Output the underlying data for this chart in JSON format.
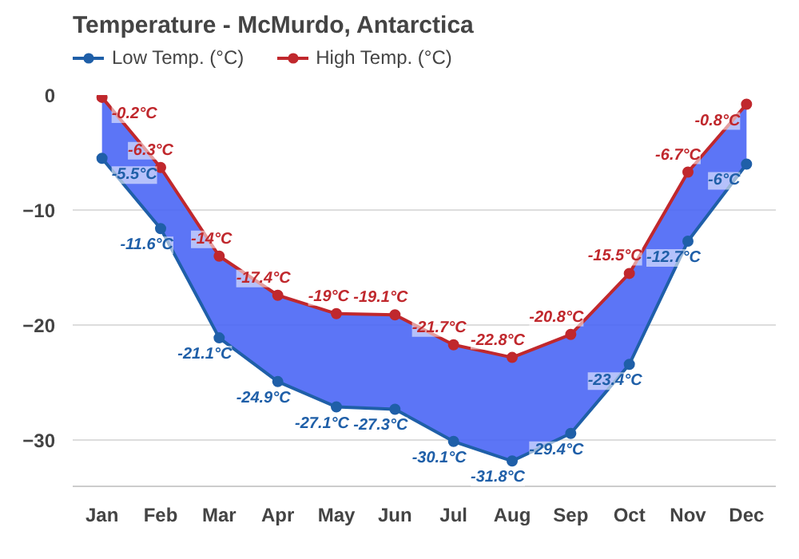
{
  "chart_data": {
    "type": "line",
    "title": "Temperature - McMurdo, Antarctica",
    "categories": [
      "Jan",
      "Feb",
      "Mar",
      "Apr",
      "May",
      "Jun",
      "Jul",
      "Aug",
      "Sep",
      "Oct",
      "Nov",
      "Dec"
    ],
    "series": [
      {
        "name": "Low Temp. (°C)",
        "color": "#1f5fa8",
        "values": [
          -5.5,
          -11.6,
          -21.1,
          -24.9,
          -27.1,
          -27.3,
          -30.1,
          -31.8,
          -29.4,
          -23.4,
          -12.7,
          -6.0
        ],
        "value_labels": [
          "-5.5°C",
          "-11.6°C",
          "-21.1°C",
          "-24.9°C",
          "-27.1°C",
          "-27.3°C",
          "-30.1°C",
          "-31.8°C",
          "-29.4°C",
          "-23.4°C",
          "-12.7°C",
          "-6°C"
        ]
      },
      {
        "name": "High Temp. (°C)",
        "color": "#c0282d",
        "values": [
          -0.2,
          -6.3,
          -14,
          -17.4,
          -19,
          -19.1,
          -21.7,
          -22.8,
          -20.8,
          -15.5,
          -6.7,
          -0.8
        ],
        "value_labels": [
          "-0.2°C",
          "-6.3°C",
          "-14°C",
          "-17.4°C",
          "-19°C",
          "-19.1°C",
          "-21.7°C",
          "-22.8°C",
          "-20.8°C",
          "-15.5°C",
          "-6.7°C",
          "-0.8°C"
        ],
        "lower": [
          -5.5,
          -11.6,
          -21.1,
          -24.9,
          -27.1,
          -27.3,
          -30.1,
          -31.8,
          -29.4,
          -23.4,
          -12.7,
          -6.0
        ],
        "upper": [
          -0.2,
          -6.3,
          -14,
          -17.4,
          -19,
          -19.1,
          -21.7,
          -22.8,
          -20.8,
          -15.5,
          -6.7,
          -0.8
        ]
      }
    ],
    "ylim": [
      -34,
      0
    ],
    "yticks": [
      0,
      -10,
      -20,
      -30
    ],
    "grid": "y",
    "legend": "top left",
    "marker": "circle",
    "line_style": "solid"
  }
}
